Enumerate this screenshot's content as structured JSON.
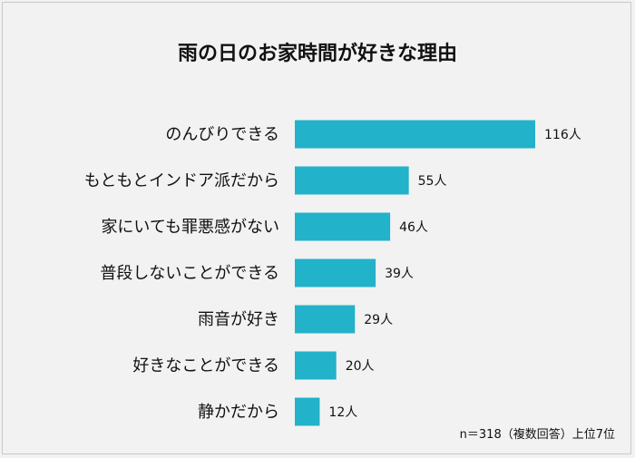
{
  "chart_data": {
    "type": "bar",
    "orientation": "horizontal",
    "title": "雨の日のお家時間が好きな理由",
    "categories": [
      "のんびりできる",
      "もともとインドア派だから",
      "家にいても罪悪感がない",
      "普段しないことができる",
      "雨音が好き",
      "好きなことができる",
      "静かだから"
    ],
    "values": [
      116,
      55,
      46,
      39,
      29,
      20,
      12
    ],
    "value_labels": [
      "116人",
      "55人",
      "46人",
      "39人",
      "29人",
      "20人",
      "12人"
    ],
    "unit": "人",
    "bar_color": "#22b2c9",
    "xlim": [
      0,
      116
    ],
    "grid": false,
    "note": "n＝318（複数回答）上位7位"
  }
}
